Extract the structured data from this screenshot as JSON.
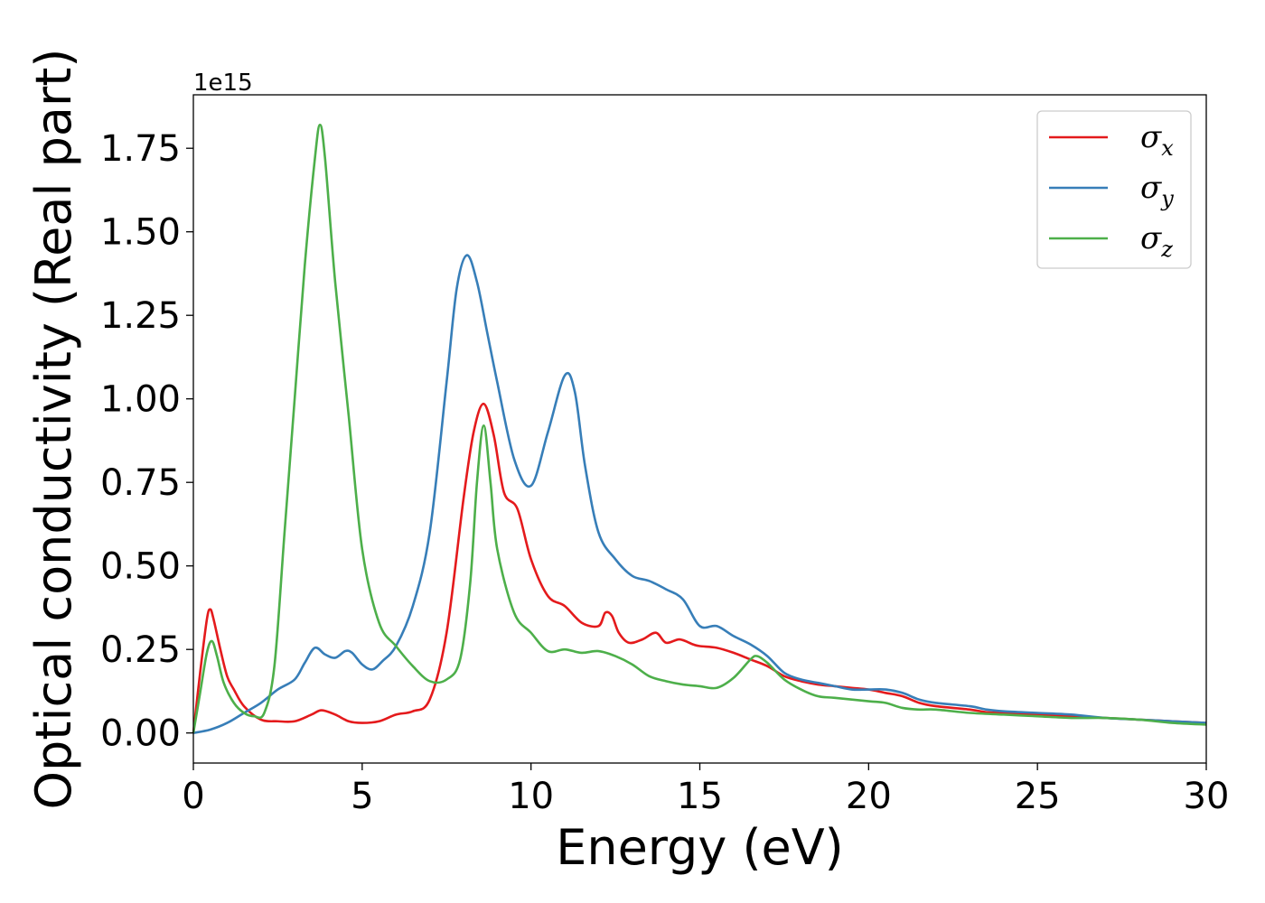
{
  "chart_data": {
    "type": "line",
    "title": "",
    "xlabel": "Energy (eV)",
    "ylabel": "Optical conductivity (Real part)",
    "y_offset_label": "1e15",
    "xlim": [
      0,
      30
    ],
    "ylim": [
      -0.09,
      1.91
    ],
    "x_ticks": [
      0,
      5,
      10,
      15,
      20,
      25,
      30
    ],
    "x_tick_labels": [
      "0",
      "5",
      "10",
      "15",
      "20",
      "25",
      "30"
    ],
    "y_ticks": [
      0.0,
      0.25,
      0.5,
      0.75,
      1.0,
      1.25,
      1.5,
      1.75
    ],
    "y_tick_labels": [
      "0.00",
      "0.25",
      "0.50",
      "0.75",
      "1.00",
      "1.25",
      "1.50",
      "1.75"
    ],
    "grid": false,
    "legend_position": "top-right",
    "series": [
      {
        "name": "x",
        "legend_symbol": "σ",
        "color": "#e41a1c",
        "x": [
          0,
          0.2,
          0.4,
          0.5,
          0.6,
          0.8,
          1.0,
          1.2,
          1.5,
          2.0,
          2.5,
          3.0,
          3.5,
          3.8,
          4.2,
          4.6,
          5.0,
          5.5,
          6.0,
          6.5,
          7.0,
          7.5,
          8.0,
          8.3,
          8.6,
          8.9,
          9.2,
          9.6,
          10.0,
          10.5,
          11.0,
          11.5,
          12.0,
          12.2,
          12.4,
          12.6,
          12.9,
          13.3,
          13.7,
          14.0,
          14.4,
          14.8,
          15.0,
          15.5,
          16.0,
          16.5,
          17.0,
          17.5,
          18.0,
          18.5,
          19.0,
          19.5,
          20.0,
          20.5,
          21.0,
          21.5,
          22.0,
          23.0,
          23.5,
          24.0,
          25.0,
          26.0,
          27.0,
          28.0,
          29.0,
          30.0
        ],
        "values": [
          0.0,
          0.18,
          0.34,
          0.37,
          0.34,
          0.25,
          0.17,
          0.13,
          0.08,
          0.04,
          0.035,
          0.035,
          0.055,
          0.068,
          0.055,
          0.035,
          0.03,
          0.035,
          0.055,
          0.065,
          0.1,
          0.3,
          0.7,
          0.9,
          0.985,
          0.89,
          0.72,
          0.67,
          0.52,
          0.41,
          0.38,
          0.33,
          0.32,
          0.36,
          0.35,
          0.3,
          0.27,
          0.28,
          0.3,
          0.27,
          0.28,
          0.265,
          0.26,
          0.255,
          0.24,
          0.22,
          0.2,
          0.17,
          0.155,
          0.145,
          0.14,
          0.135,
          0.13,
          0.12,
          0.11,
          0.09,
          0.08,
          0.07,
          0.062,
          0.06,
          0.055,
          0.05,
          0.045,
          0.04,
          0.035,
          0.03
        ]
      },
      {
        "name": "y",
        "legend_symbol": "σ",
        "color": "#377eb8",
        "x": [
          0,
          0.5,
          1.0,
          1.5,
          2.0,
          2.5,
          3.0,
          3.3,
          3.6,
          3.9,
          4.2,
          4.5,
          4.7,
          5.0,
          5.3,
          5.6,
          6.0,
          6.5,
          7.0,
          7.5,
          7.8,
          8.1,
          8.4,
          8.7,
          9.0,
          9.5,
          10.0,
          10.5,
          11.0,
          11.3,
          11.6,
          12.0,
          12.5,
          13.0,
          13.5,
          14.0,
          14.5,
          15.0,
          15.5,
          16.0,
          16.5,
          17.0,
          17.5,
          18.0,
          18.5,
          19.0,
          19.5,
          20.0,
          20.5,
          21.0,
          21.5,
          22.0,
          23.0,
          23.5,
          24.0,
          25.0,
          26.0,
          27.0,
          28.0,
          29.0,
          30.0
        ],
        "values": [
          0.0,
          0.01,
          0.03,
          0.06,
          0.09,
          0.13,
          0.16,
          0.21,
          0.255,
          0.235,
          0.225,
          0.245,
          0.24,
          0.205,
          0.19,
          0.215,
          0.26,
          0.38,
          0.6,
          1.05,
          1.33,
          1.43,
          1.35,
          1.2,
          1.05,
          0.82,
          0.74,
          0.9,
          1.07,
          1.02,
          0.8,
          0.6,
          0.52,
          0.47,
          0.455,
          0.43,
          0.4,
          0.32,
          0.32,
          0.29,
          0.265,
          0.23,
          0.18,
          0.16,
          0.15,
          0.14,
          0.13,
          0.13,
          0.13,
          0.12,
          0.1,
          0.09,
          0.08,
          0.07,
          0.065,
          0.06,
          0.055,
          0.045,
          0.04,
          0.035,
          0.03
        ]
      },
      {
        "name": "z",
        "legend_symbol": "σ",
        "color": "#4daf4a",
        "x": [
          0,
          0.2,
          0.4,
          0.55,
          0.7,
          0.9,
          1.2,
          1.5,
          1.8,
          2.1,
          2.4,
          2.7,
          3.0,
          3.3,
          3.6,
          3.75,
          3.9,
          4.2,
          4.6,
          5.0,
          5.5,
          6.0,
          6.5,
          7.0,
          7.5,
          7.9,
          8.2,
          8.4,
          8.6,
          8.8,
          9.0,
          9.5,
          10.0,
          10.5,
          11.0,
          11.5,
          12.0,
          12.5,
          13.0,
          13.5,
          14.0,
          14.5,
          15.0,
          15.5,
          16.0,
          16.5,
          16.7,
          17.0,
          17.5,
          18.0,
          18.5,
          19.0,
          20.0,
          20.5,
          21.0,
          21.5,
          22.0,
          23.0,
          24.0,
          25.0,
          26.0,
          27.0,
          28.0,
          29.0,
          30.0
        ],
        "values": [
          0.0,
          0.12,
          0.24,
          0.275,
          0.23,
          0.15,
          0.09,
          0.06,
          0.05,
          0.06,
          0.2,
          0.6,
          1.0,
          1.4,
          1.72,
          1.82,
          1.72,
          1.35,
          0.95,
          0.55,
          0.33,
          0.26,
          0.2,
          0.155,
          0.16,
          0.22,
          0.45,
          0.75,
          0.92,
          0.75,
          0.55,
          0.36,
          0.3,
          0.245,
          0.25,
          0.24,
          0.245,
          0.23,
          0.205,
          0.17,
          0.155,
          0.145,
          0.14,
          0.135,
          0.165,
          0.22,
          0.23,
          0.21,
          0.16,
          0.13,
          0.11,
          0.105,
          0.095,
          0.09,
          0.075,
          0.07,
          0.07,
          0.06,
          0.055,
          0.05,
          0.045,
          0.045,
          0.04,
          0.03,
          0.025
        ]
      }
    ]
  }
}
